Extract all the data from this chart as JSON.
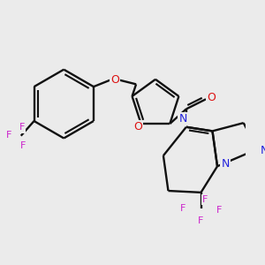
{
  "bg_color": "#ebebeb",
  "bond_color": "#111111",
  "N_color": "#2222dd",
  "O_color": "#dd1111",
  "F_color": "#cc22cc",
  "lw": 1.7,
  "figsize": [
    3.0,
    3.0
  ],
  "dpi": 100,
  "xlim": [
    0,
    300
  ],
  "ylim": [
    0,
    300
  ]
}
